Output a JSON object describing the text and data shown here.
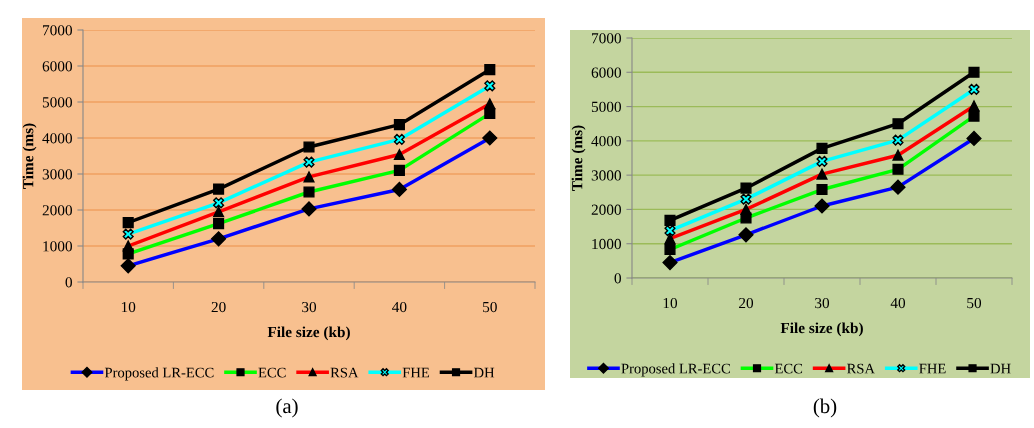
{
  "chart_data": [
    {
      "type": "line",
      "xlabel": "File size (kb)",
      "ylabel": "Time (ms)",
      "categories": [
        "10",
        "20",
        "30",
        "40",
        "50"
      ],
      "ylim": [
        0,
        7000
      ],
      "yticks": [
        0,
        1000,
        2000,
        3000,
        4000,
        5000,
        6000,
        7000
      ],
      "grid": "y",
      "legend": "bottom",
      "annotations": [
        "(a)"
      ],
      "series": [
        {
          "name": "Proposed LR-ECC",
          "color": "#0000ff",
          "marker": "diamond",
          "values": [
            450,
            1200,
            2030,
            2570,
            4000
          ]
        },
        {
          "name": "ECC",
          "color": "#00ff00",
          "marker": "square",
          "values": [
            780,
            1620,
            2500,
            3100,
            4680
          ]
        },
        {
          "name": "RSA",
          "color": "#ff0000",
          "marker": "triangle",
          "values": [
            1000,
            1950,
            2920,
            3540,
            4950
          ]
        },
        {
          "name": "FHE",
          "color": "#00ffff",
          "marker": "cross",
          "values": [
            1330,
            2200,
            3330,
            3960,
            5450
          ]
        },
        {
          "name": "DH",
          "color": "#000000",
          "marker": "square",
          "values": [
            1650,
            2580,
            3750,
            4370,
            5900
          ]
        }
      ]
    },
    {
      "type": "line",
      "xlabel": "File size (kb)",
      "ylabel": "Time (ms)",
      "categories": [
        "10",
        "20",
        "30",
        "40",
        "50"
      ],
      "ylim": [
        0,
        7000
      ],
      "yticks": [
        0,
        1000,
        2000,
        3000,
        4000,
        5000,
        6000,
        7000
      ],
      "grid": "y",
      "legend": "bottom",
      "annotations": [
        "(b)"
      ],
      "series": [
        {
          "name": "Proposed LR-ECC",
          "color": "#0000ff",
          "marker": "diamond",
          "values": [
            450,
            1260,
            2100,
            2650,
            4070
          ]
        },
        {
          "name": "ECC",
          "color": "#00ff00",
          "marker": "square",
          "values": [
            830,
            1750,
            2580,
            3170,
            4720
          ]
        },
        {
          "name": "RSA",
          "color": "#ff0000",
          "marker": "triangle",
          "values": [
            1150,
            2000,
            3030,
            3580,
            5020
          ]
        },
        {
          "name": "FHE",
          "color": "#00ffff",
          "marker": "cross",
          "values": [
            1380,
            2300,
            3400,
            4020,
            5500
          ]
        },
        {
          "name": "DH",
          "color": "#000000",
          "marker": "square",
          "values": [
            1680,
            2620,
            3780,
            4500,
            6000
          ]
        }
      ]
    }
  ]
}
